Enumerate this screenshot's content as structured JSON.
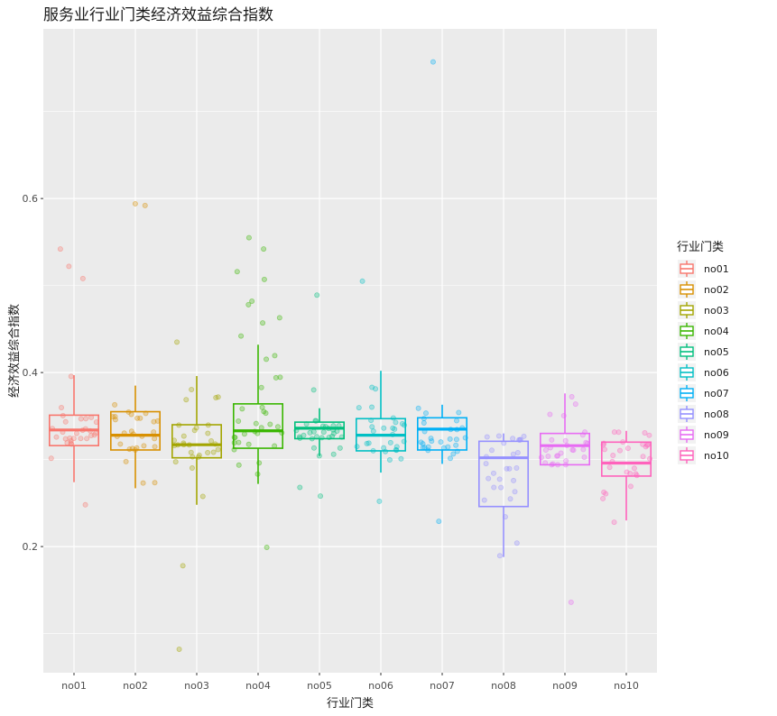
{
  "chart_data": {
    "type": "box",
    "title": "服务业行业门类经济效益综合指数",
    "xlabel": "行业门类",
    "ylabel": "经济效益综合指数",
    "ylim": [
      0.055,
      0.795
    ],
    "yticks": [
      "0.2",
      "0.4",
      "0.6"
    ],
    "grid": true,
    "jitter_points": true,
    "legend": {
      "title": "行业门类",
      "position": "right"
    },
    "categories": [
      "no01",
      "no02",
      "no03",
      "no04",
      "no05",
      "no06",
      "no07",
      "no08",
      "no09",
      "no10"
    ],
    "colors": [
      "#F8766D",
      "#D89000",
      "#A3A500",
      "#39B600",
      "#00BF7D",
      "#00BFC4",
      "#00B0F6",
      "#9590FF",
      "#E76BF3",
      "#FF62BC"
    ],
    "series": [
      {
        "name": "no01",
        "whisker_low": 0.274,
        "q1": 0.316,
        "median": 0.334,
        "q3": 0.351,
        "whisker_high": 0.397,
        "outliers": [
          0.542,
          0.522,
          0.508,
          0.248
        ]
      },
      {
        "name": "no02",
        "whisker_low": 0.267,
        "q1": 0.311,
        "median": 0.328,
        "q3": 0.355,
        "whisker_high": 0.385,
        "outliers": [
          0.594,
          0.592
        ]
      },
      {
        "name": "no03",
        "whisker_low": 0.248,
        "q1": 0.302,
        "median": 0.317,
        "q3": 0.34,
        "whisker_high": 0.396,
        "outliers": [
          0.435,
          0.178,
          0.082
        ]
      },
      {
        "name": "no04",
        "whisker_low": 0.272,
        "q1": 0.313,
        "median": 0.333,
        "q3": 0.364,
        "whisker_high": 0.432,
        "outliers": [
          0.555,
          0.542,
          0.516,
          0.507,
          0.482,
          0.478,
          0.463,
          0.457,
          0.442,
          0.199
        ]
      },
      {
        "name": "no05",
        "whisker_low": 0.304,
        "q1": 0.324,
        "median": 0.336,
        "q3": 0.343,
        "whisker_high": 0.359,
        "outliers": [
          0.489,
          0.38,
          0.268,
          0.258
        ]
      },
      {
        "name": "no06",
        "whisker_low": 0.285,
        "q1": 0.31,
        "median": 0.328,
        "q3": 0.347,
        "whisker_high": 0.402,
        "outliers": [
          0.505,
          0.252
        ]
      },
      {
        "name": "no07",
        "whisker_low": 0.295,
        "q1": 0.311,
        "median": 0.335,
        "q3": 0.348,
        "whisker_high": 0.363,
        "outliers": [
          0.757,
          0.229
        ]
      },
      {
        "name": "no08",
        "whisker_low": 0.188,
        "q1": 0.246,
        "median": 0.302,
        "q3": 0.321,
        "whisker_high": 0.33,
        "outliers": []
      },
      {
        "name": "no09",
        "whisker_low": 0.294,
        "q1": 0.294,
        "median": 0.316,
        "q3": 0.33,
        "whisker_high": 0.376,
        "outliers": [
          0.136
        ]
      },
      {
        "name": "no10",
        "whisker_low": 0.23,
        "q1": 0.281,
        "median": 0.296,
        "q3": 0.32,
        "whisker_high": 0.333,
        "outliers": [
          0.228
        ]
      }
    ]
  }
}
